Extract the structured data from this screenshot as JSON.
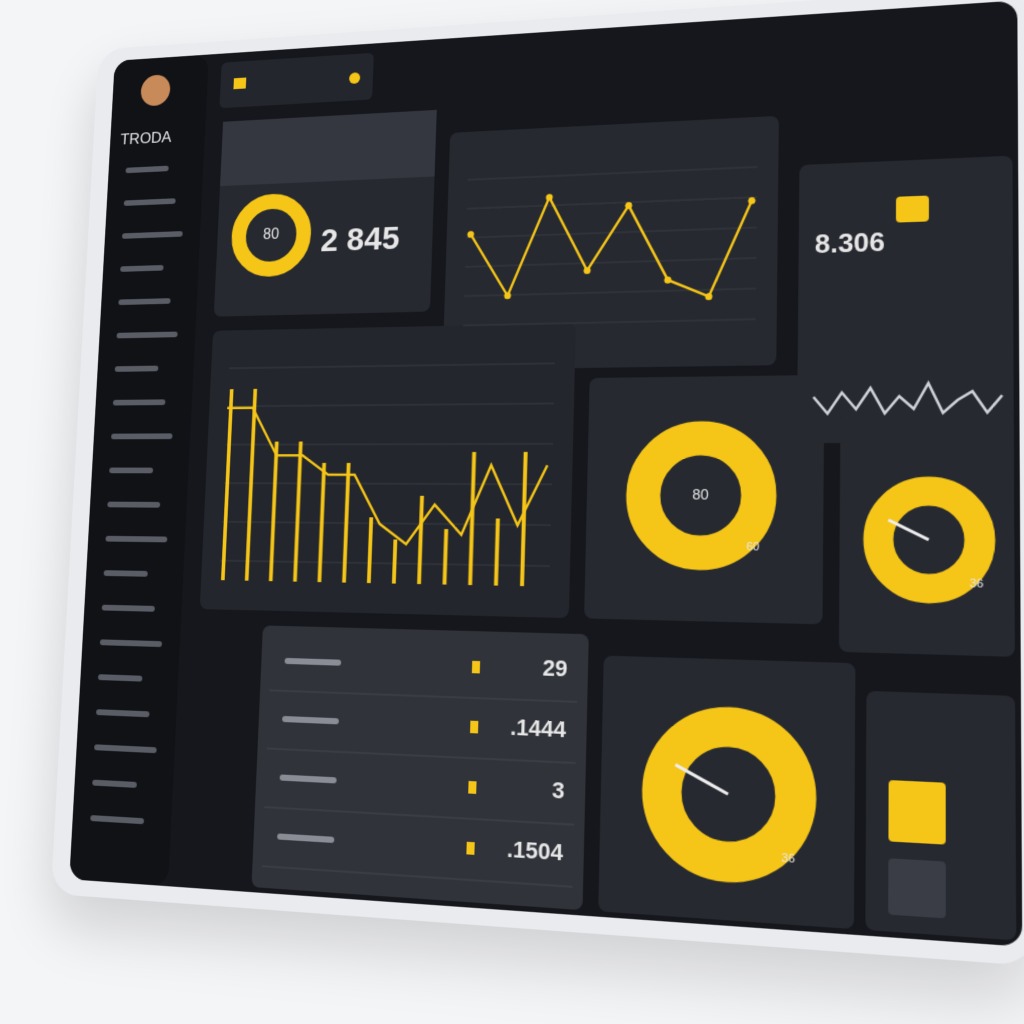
{
  "brand": "TRODA",
  "kpi": {
    "gauge": "80",
    "value": "2 845"
  },
  "line_chart": {
    "values": [
      8,
      2.5,
      11,
      4.5,
      10,
      3.5,
      2,
      10
    ]
  },
  "stat": {
    "value": "8.306",
    "wave": [
      6,
      2,
      7,
      3,
      8,
      2,
      6,
      3,
      9,
      2,
      5,
      7,
      2,
      6
    ]
  },
  "step_chart": {
    "values": [
      9,
      9,
      6.5,
      6.5,
      5.5,
      5.5,
      3,
      2,
      4,
      2.5,
      6,
      3,
      6
    ]
  },
  "gauges": [
    {
      "center": "80",
      "corner": "60"
    },
    {
      "corner": "36"
    },
    {
      "corner": "36"
    }
  ],
  "list": {
    "rows": [
      {
        "value": "29"
      },
      {
        "value": ".1444"
      },
      {
        "value": "3"
      },
      {
        "value": ".1504"
      }
    ]
  }
}
